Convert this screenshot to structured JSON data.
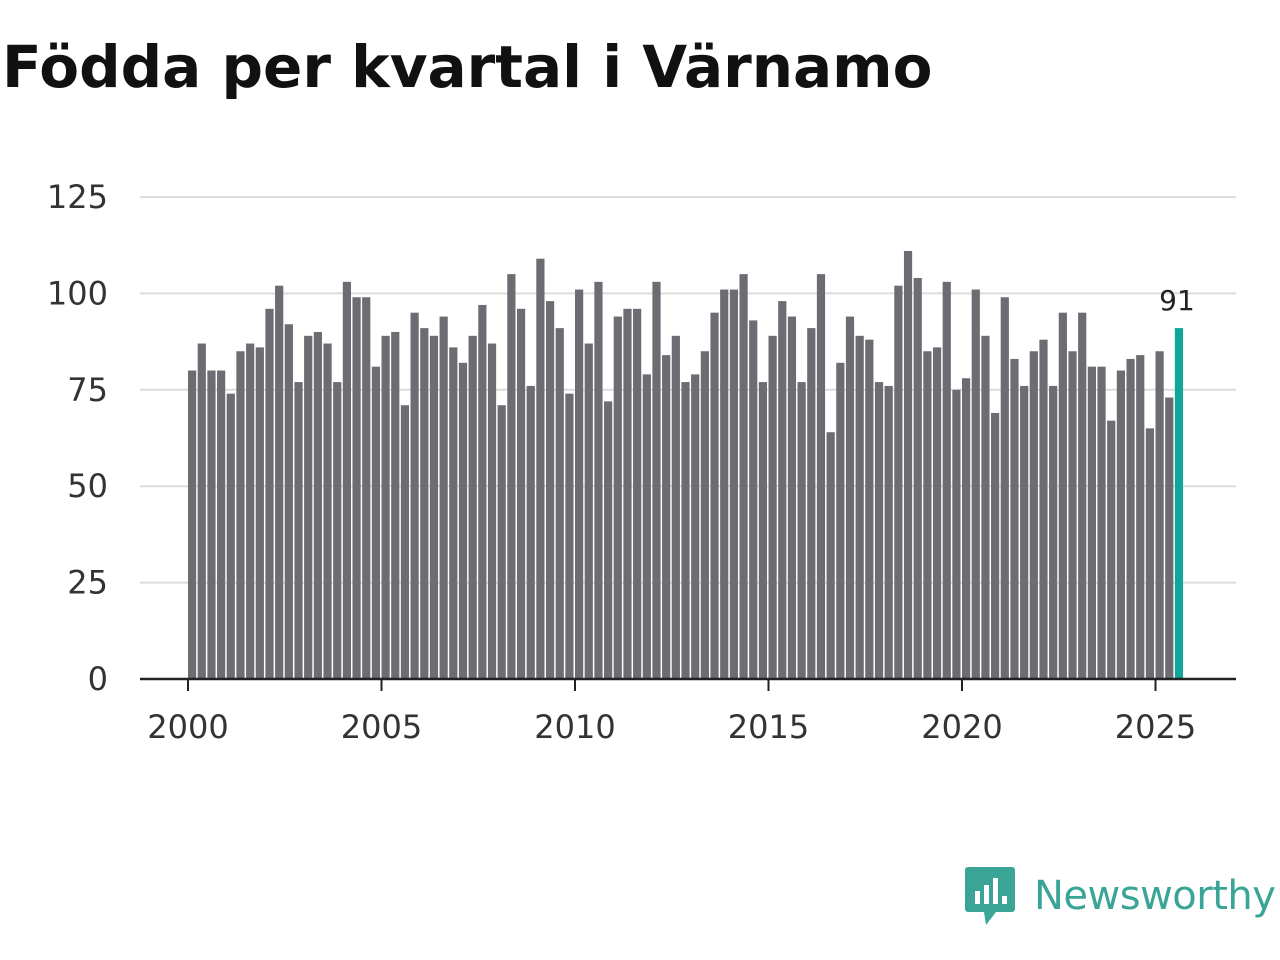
{
  "chart_data": {
    "type": "bar",
    "title": "Födda per kvartal i Värnamo",
    "xlabel": "",
    "ylabel": "",
    "ylim": [
      0,
      125
    ],
    "yticks": [
      0,
      25,
      50,
      75,
      100,
      125
    ],
    "xticks": [
      "2000",
      "2005",
      "2010",
      "2015",
      "2020",
      "2025"
    ],
    "grid": true,
    "start": {
      "year": 2000,
      "quarter": 1
    },
    "categories": [
      "2000 K1",
      "2000 K2",
      "2000 K3",
      "2000 K4",
      "2001 K1",
      "2001 K2",
      "2001 K3",
      "2001 K4",
      "2002 K1",
      "2002 K2",
      "2002 K3",
      "2002 K4",
      "2003 K1",
      "2003 K2",
      "2003 K3",
      "2003 K4",
      "2004 K1",
      "2004 K2",
      "2004 K3",
      "2004 K4",
      "2005 K1",
      "2005 K2",
      "2005 K3",
      "2005 K4",
      "2006 K1",
      "2006 K2",
      "2006 K3",
      "2006 K4",
      "2007 K1",
      "2007 K2",
      "2007 K3",
      "2007 K4",
      "2008 K1",
      "2008 K2",
      "2008 K3",
      "2008 K4",
      "2009 K1",
      "2009 K2",
      "2009 K3",
      "2009 K4",
      "2010 K1",
      "2010 K2",
      "2010 K3",
      "2010 K4",
      "2011 K1",
      "2011 K2",
      "2011 K3",
      "2011 K4",
      "2012 K1",
      "2012 K2",
      "2012 K3",
      "2012 K4",
      "2013 K1",
      "2013 K2",
      "2013 K3",
      "2013 K4",
      "2014 K1",
      "2014 K2",
      "2014 K3",
      "2014 K4",
      "2015 K1",
      "2015 K2",
      "2015 K3",
      "2015 K4",
      "2016 K1",
      "2016 K2",
      "2016 K3",
      "2016 K4",
      "2017 K1",
      "2017 K2",
      "2017 K3",
      "2017 K4",
      "2018 K1",
      "2018 K2",
      "2018 K3",
      "2018 K4",
      "2019 K1",
      "2019 K2",
      "2019 K3",
      "2019 K4",
      "2020 K1",
      "2020 K2",
      "2020 K3",
      "2020 K4",
      "2021 K1",
      "2021 K2",
      "2021 K3",
      "2021 K4",
      "2022 K1",
      "2022 K2",
      "2022 K3",
      "2022 K4",
      "2023 K1",
      "2023 K2",
      "2023 K3",
      "2023 K4",
      "2024 K1",
      "2024 K2",
      "2024 K3",
      "2024 K4",
      "2025 K1",
      "2025 K2",
      "2025 K3"
    ],
    "values": [
      80,
      87,
      80,
      80,
      74,
      85,
      87,
      86,
      96,
      102,
      92,
      77,
      89,
      90,
      87,
      77,
      103,
      99,
      99,
      81,
      89,
      90,
      71,
      95,
      91,
      89,
      94,
      86,
      82,
      89,
      97,
      87,
      71,
      105,
      96,
      76,
      109,
      98,
      91,
      74,
      101,
      87,
      103,
      72,
      94,
      96,
      96,
      79,
      103,
      84,
      89,
      77,
      79,
      85,
      95,
      101,
      101,
      105,
      93,
      77,
      89,
      98,
      94,
      77,
      91,
      105,
      64,
      82,
      94,
      89,
      88,
      77,
      76,
      102,
      111,
      104,
      85,
      86,
      103,
      75,
      78,
      101,
      89,
      69,
      99,
      83,
      76,
      85,
      88,
      76,
      95,
      85,
      95,
      81,
      81,
      67,
      80,
      83,
      84,
      65,
      85,
      73,
      91
    ],
    "highlight_index": 102,
    "highlight_label": "91",
    "colors": {
      "bar": "#6d6c72",
      "highlight": "#12a69a",
      "grid": "#dcdcdc",
      "axis": "#222222"
    }
  },
  "brand": {
    "name": "Newsworthy",
    "color": "#3aa597",
    "icon": "newsworthy-logo-icon"
  }
}
